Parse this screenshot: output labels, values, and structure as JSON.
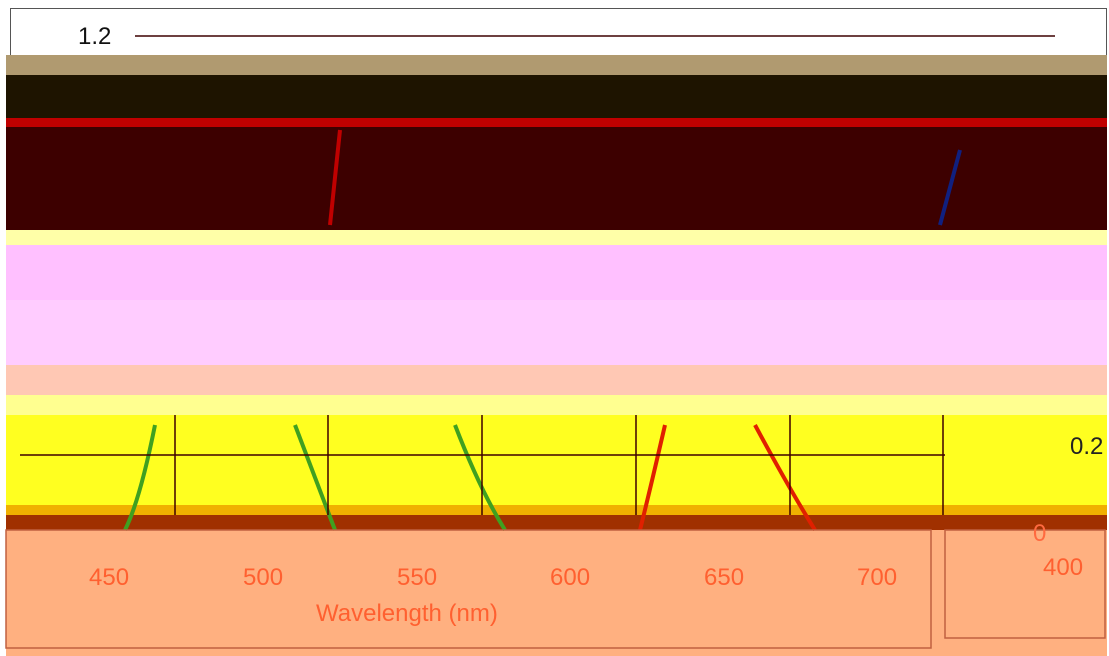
{
  "plot": {
    "y_labels": [
      "1.2",
      "0.2",
      "0"
    ],
    "x_labels": [
      "450",
      "500",
      "550",
      "600",
      "650",
      "700"
    ],
    "x_axis_label": "Wavelength (nm)",
    "side_label": "400"
  }
}
